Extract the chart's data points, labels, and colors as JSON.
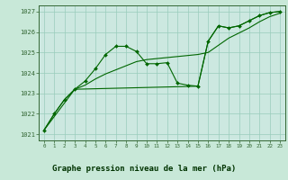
{
  "title": "Graphe pression niveau de la mer (hPa)",
  "bg_outer": "#4d9966",
  "bg_plot": "#cce8e0",
  "bg_label_bar": "#336644",
  "grid_color": "#99ccbb",
  "line_color": "#006600",
  "marker_color": "#006600",
  "xlim": [
    -0.5,
    23.5
  ],
  "ylim": [
    1020.7,
    1027.3
  ],
  "xticks": [
    0,
    1,
    2,
    3,
    4,
    5,
    6,
    7,
    8,
    9,
    10,
    11,
    12,
    13,
    14,
    15,
    16,
    17,
    18,
    19,
    20,
    21,
    22,
    23
  ],
  "yticks": [
    1021,
    1022,
    1023,
    1024,
    1025,
    1026,
    1027
  ],
  "series1_x": [
    0,
    1,
    2,
    3,
    4,
    5,
    6,
    7,
    8,
    9,
    10,
    11,
    12,
    13,
    14,
    15,
    16,
    17,
    18,
    19,
    20,
    21,
    22,
    23
  ],
  "series1_y": [
    1021.2,
    1022.0,
    1022.7,
    1023.2,
    1023.6,
    1024.2,
    1024.9,
    1025.3,
    1025.3,
    1025.05,
    1024.45,
    1024.45,
    1024.5,
    1023.5,
    1023.4,
    1023.35,
    1025.55,
    1026.3,
    1026.2,
    1026.3,
    1026.55,
    1026.8,
    1026.95,
    1027.0
  ],
  "series2_x": [
    0,
    3,
    15,
    16,
    17,
    18,
    19,
    20,
    21,
    22,
    23
  ],
  "series2_y": [
    1021.2,
    1023.2,
    1023.35,
    1025.55,
    1026.3,
    1026.2,
    1026.3,
    1026.55,
    1026.8,
    1026.95,
    1027.0
  ],
  "series3_x": [
    0,
    1,
    2,
    3,
    4,
    5,
    6,
    7,
    8,
    9,
    10,
    11,
    12,
    13,
    14,
    15,
    16,
    17,
    18,
    19,
    20,
    21,
    22,
    23
  ],
  "series3_y": [
    1021.2,
    1022.0,
    1022.7,
    1023.2,
    1023.4,
    1023.7,
    1023.95,
    1024.15,
    1024.35,
    1024.55,
    1024.65,
    1024.7,
    1024.75,
    1024.8,
    1024.85,
    1024.9,
    1025.0,
    1025.35,
    1025.7,
    1025.95,
    1026.2,
    1026.5,
    1026.75,
    1026.92
  ]
}
